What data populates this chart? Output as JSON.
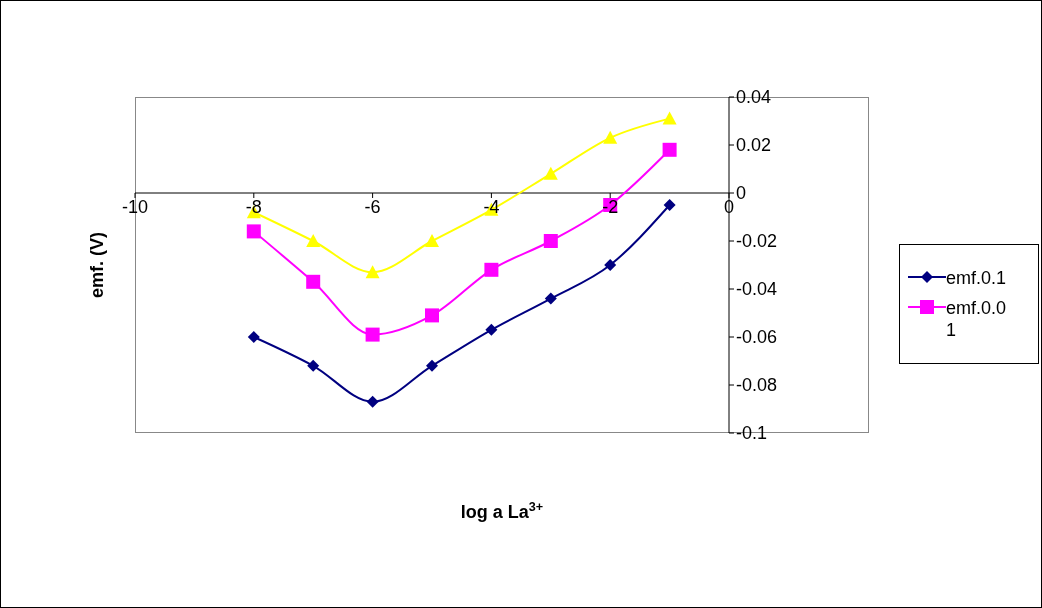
{
  "chart_data": {
    "type": "line",
    "xlabel": "log a La$^{3+}$",
    "ylabel": "emf. (V)",
    "x": [
      -8,
      -7,
      -6,
      -5,
      -4,
      -3,
      -2,
      -1
    ],
    "series": [
      {
        "name": "emf.0.1",
        "color": "#000080",
        "marker": "diamond",
        "values": [
          -0.06,
          -0.072,
          -0.087,
          -0.072,
          -0.057,
          -0.044,
          -0.03,
          -0.005
        ]
      },
      {
        "name": "emf.0.01",
        "color": "#ff00ff",
        "marker": "square",
        "values": [
          -0.016,
          -0.037,
          -0.059,
          -0.051,
          -0.032,
          -0.02,
          -0.005,
          0.018
        ]
      },
      {
        "color": "#ffff00",
        "marker": "triangle",
        "values": [
          -0.008,
          -0.02,
          -0.033,
          -0.02,
          -0.007,
          0.008,
          0.023,
          0.031
        ]
      }
    ],
    "xlim": [
      -10,
      0
    ],
    "xticks": [
      -10,
      -8,
      -6,
      -4,
      -2,
      0
    ],
    "ylim": [
      -0.1,
      0.04
    ],
    "yticks": [
      -0.1,
      -0.08,
      -0.06,
      -0.04,
      -0.02,
      0,
      0.02,
      0.04
    ],
    "legend": "right"
  }
}
